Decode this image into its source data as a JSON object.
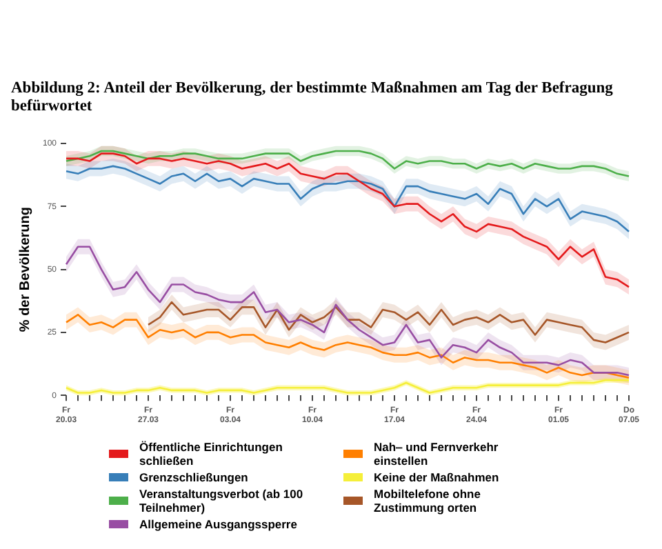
{
  "chart_data": {
    "type": "line",
    "title": "Abbildung 2: Anteil der Bevölkerung, der bestimmte Maßnahmen am Tag der Befragung befürwortet",
    "ylabel": "% der Bevölkerung",
    "categories": [
      "Fr 20.03",
      null,
      null,
      null,
      null,
      null,
      null,
      "Fr 27.03",
      null,
      null,
      null,
      null,
      null,
      null,
      "Fr 03.04",
      null,
      null,
      null,
      null,
      null,
      null,
      "Fr 10.04",
      null,
      null,
      null,
      null,
      null,
      null,
      "Fr 17.04",
      null,
      null,
      null,
      null,
      null,
      null,
      "Fr 24.04",
      null,
      null,
      null,
      null,
      null,
      null,
      "Fr 01.05",
      null,
      null,
      null,
      null,
      null,
      "Do 07.05"
    ],
    "ylim": [
      0,
      100
    ],
    "yticks": [
      0,
      25,
      50,
      75,
      100
    ],
    "grid": false,
    "legend": "bottom",
    "marker": "none",
    "line_style": "solid",
    "series": [
      {
        "name": "Öffentliche Einrichtungen schließen",
        "color": "#e41a1c",
        "values": [
          94,
          94,
          93,
          96,
          96,
          95,
          92,
          94,
          94,
          93,
          94,
          93,
          92,
          93,
          92,
          90,
          91,
          92,
          90,
          92,
          88,
          87,
          86,
          88,
          88,
          85,
          82,
          80,
          75,
          76,
          76,
          72,
          69,
          72,
          67,
          65,
          68,
          67,
          66,
          63,
          61,
          59,
          54,
          59,
          55,
          58,
          47,
          46,
          43
        ],
        "lower": [
          91,
          91,
          90,
          93,
          93,
          92,
          89,
          91,
          91,
          90,
          91,
          90,
          89,
          90,
          89,
          87,
          88,
          89,
          87,
          89,
          85,
          84,
          83,
          85,
          85,
          82,
          79,
          77,
          72,
          73,
          73,
          69,
          66,
          69,
          64,
          62,
          65,
          64,
          63,
          60,
          58,
          56,
          51,
          56,
          52,
          55,
          44,
          43,
          40
        ],
        "upper": [
          97,
          97,
          96,
          99,
          99,
          98,
          95,
          97,
          97,
          96,
          97,
          96,
          95,
          96,
          95,
          93,
          94,
          95,
          93,
          95,
          91,
          90,
          89,
          91,
          91,
          88,
          85,
          83,
          78,
          79,
          79,
          75,
          72,
          75,
          70,
          68,
          71,
          70,
          69,
          66,
          64,
          62,
          57,
          62,
          58,
          61,
          50,
          49,
          46
        ]
      },
      {
        "name": "Grenzschließungen",
        "color": "#377eb8",
        "values": [
          89,
          88,
          90,
          90,
          91,
          90,
          88,
          86,
          84,
          87,
          88,
          85,
          88,
          85,
          86,
          83,
          86,
          85,
          84,
          84,
          78,
          82,
          84,
          84,
          85,
          85,
          84,
          82,
          75,
          83,
          83,
          81,
          80,
          79,
          78,
          80,
          76,
          82,
          80,
          72,
          78,
          75,
          78,
          70,
          73,
          72,
          71,
          69,
          65
        ],
        "lower": [
          86,
          85,
          87,
          87,
          88,
          87,
          85,
          83,
          81,
          84,
          85,
          82,
          85,
          82,
          83,
          80,
          83,
          82,
          81,
          81,
          75,
          79,
          81,
          81,
          82,
          82,
          81,
          79,
          72,
          80,
          80,
          78,
          77,
          76,
          75,
          77,
          73,
          79,
          77,
          69,
          75,
          72,
          75,
          67,
          70,
          69,
          68,
          66,
          62
        ],
        "upper": [
          92,
          91,
          93,
          93,
          94,
          93,
          91,
          89,
          87,
          90,
          91,
          88,
          91,
          88,
          89,
          86,
          89,
          88,
          87,
          87,
          81,
          85,
          87,
          87,
          88,
          88,
          87,
          85,
          78,
          86,
          86,
          84,
          83,
          82,
          81,
          83,
          79,
          85,
          83,
          75,
          81,
          78,
          81,
          73,
          76,
          75,
          74,
          72,
          68
        ]
      },
      {
        "name": "Veranstaltungsverbot (ab 100 Teilnehmer)",
        "color": "#4daf4a",
        "values": [
          93,
          94,
          95,
          97,
          97,
          96,
          95,
          94,
          95,
          95,
          96,
          96,
          95,
          94,
          94,
          94,
          95,
          96,
          96,
          96,
          93,
          95,
          96,
          97,
          97,
          97,
          96,
          94,
          90,
          93,
          92,
          93,
          93,
          92,
          92,
          90,
          92,
          91,
          92,
          90,
          92,
          91,
          90,
          90,
          91,
          91,
          90,
          88,
          87
        ],
        "lower": [
          91,
          92,
          93,
          95,
          95,
          94,
          93,
          92,
          93,
          93,
          94,
          94,
          93,
          92,
          92,
          92,
          93,
          94,
          94,
          94,
          91,
          93,
          94,
          95,
          95,
          95,
          94,
          92,
          88,
          91,
          90,
          91,
          91,
          90,
          90,
          88,
          90,
          89,
          90,
          88,
          90,
          89,
          88,
          88,
          89,
          89,
          88,
          86,
          85
        ],
        "upper": [
          95,
          96,
          97,
          99,
          99,
          98,
          97,
          96,
          97,
          97,
          98,
          98,
          97,
          96,
          96,
          96,
          97,
          98,
          98,
          98,
          95,
          97,
          98,
          99,
          99,
          99,
          98,
          96,
          92,
          95,
          94,
          95,
          95,
          94,
          94,
          92,
          94,
          93,
          94,
          92,
          94,
          93,
          92,
          92,
          93,
          93,
          92,
          90,
          89
        ]
      },
      {
        "name": "Allgemeine Ausgangssperre",
        "color": "#984ea3",
        "values": [
          52,
          59,
          59,
          50,
          42,
          43,
          49,
          42,
          37,
          44,
          44,
          41,
          40,
          38,
          37,
          37,
          41,
          33,
          34,
          29,
          30,
          28,
          25,
          36,
          30,
          26,
          23,
          20,
          21,
          28,
          21,
          22,
          15,
          20,
          19,
          17,
          22,
          19,
          17,
          13,
          13,
          13,
          12,
          14,
          13,
          9,
          9,
          9,
          8
        ],
        "lower": [
          49,
          56,
          56,
          47,
          39,
          40,
          46,
          39,
          34,
          41,
          41,
          38,
          37,
          35,
          34,
          34,
          38,
          30,
          31,
          26,
          27,
          25,
          22,
          33,
          27,
          23,
          20,
          17,
          18,
          25,
          18,
          19,
          12,
          17,
          16,
          14,
          19,
          16,
          14,
          10,
          10,
          10,
          9,
          11,
          10,
          6,
          6,
          6,
          5
        ],
        "upper": [
          55,
          62,
          62,
          53,
          45,
          46,
          52,
          45,
          40,
          47,
          47,
          44,
          43,
          41,
          40,
          40,
          44,
          36,
          37,
          32,
          33,
          31,
          28,
          39,
          33,
          29,
          26,
          23,
          24,
          31,
          24,
          25,
          18,
          23,
          22,
          20,
          25,
          22,
          20,
          16,
          16,
          16,
          15,
          17,
          16,
          12,
          12,
          12,
          11
        ]
      },
      {
        "name": "Nah‒ und Fernverkehr einstellen",
        "color": "#ff7f00",
        "values": [
          29,
          32,
          28,
          29,
          27,
          30,
          30,
          23,
          26,
          25,
          26,
          23,
          25,
          25,
          23,
          24,
          24,
          21,
          20,
          19,
          21,
          19,
          18,
          20,
          21,
          20,
          19,
          17,
          16,
          16,
          17,
          15,
          16,
          13,
          15,
          14,
          14,
          13,
          13,
          12,
          11,
          9,
          11,
          9,
          8,
          9,
          9,
          8,
          7
        ],
        "lower": [
          26,
          29,
          25,
          26,
          24,
          27,
          27,
          20,
          23,
          22,
          23,
          20,
          22,
          22,
          20,
          21,
          21,
          18,
          17,
          16,
          18,
          16,
          15,
          17,
          18,
          17,
          16,
          14,
          13,
          13,
          14,
          12,
          13,
          10,
          12,
          11,
          11,
          10,
          10,
          9,
          8,
          6,
          8,
          6,
          5,
          6,
          6,
          5,
          4
        ],
        "upper": [
          32,
          35,
          31,
          32,
          30,
          33,
          33,
          26,
          29,
          28,
          29,
          26,
          28,
          28,
          26,
          27,
          27,
          24,
          23,
          22,
          24,
          22,
          21,
          23,
          24,
          23,
          22,
          20,
          19,
          19,
          20,
          18,
          19,
          16,
          18,
          17,
          17,
          16,
          16,
          15,
          14,
          12,
          14,
          12,
          11,
          12,
          12,
          11,
          10
        ]
      },
      {
        "name": "Keine der Maßnahmen",
        "color": "#f5ef3a",
        "values": [
          3,
          1,
          1,
          2,
          1,
          1,
          2,
          2,
          3,
          2,
          2,
          2,
          1,
          2,
          2,
          2,
          1,
          2,
          3,
          3,
          3,
          3,
          3,
          2,
          1,
          1,
          1,
          2,
          3,
          5,
          3,
          1,
          2,
          3,
          3,
          3,
          4,
          4,
          4,
          4,
          4,
          4,
          4,
          5,
          5,
          5,
          6,
          6,
          6
        ],
        "lower": [
          2,
          0,
          0,
          1,
          0,
          0,
          1,
          1,
          2,
          1,
          1,
          1,
          0,
          1,
          1,
          1,
          0,
          1,
          2,
          2,
          2,
          2,
          2,
          1,
          0,
          0,
          0,
          1,
          2,
          4,
          2,
          0,
          1,
          2,
          2,
          2,
          3,
          3,
          3,
          3,
          3,
          3,
          3,
          4,
          4,
          4,
          5,
          5,
          5
        ],
        "upper": [
          4,
          2,
          2,
          3,
          2,
          2,
          3,
          3,
          4,
          3,
          3,
          3,
          2,
          3,
          3,
          3,
          2,
          3,
          4,
          4,
          4,
          4,
          4,
          3,
          2,
          2,
          2,
          3,
          4,
          6,
          4,
          2,
          3,
          4,
          4,
          4,
          5,
          5,
          5,
          5,
          5,
          5,
          5,
          6,
          6,
          6,
          7,
          7,
          7
        ]
      },
      {
        "name": "Mobiltelefone ohne Zustimmung orten",
        "color": "#a65628",
        "values": [
          null,
          null,
          null,
          null,
          null,
          null,
          null,
          28,
          31,
          37,
          32,
          33,
          34,
          34,
          30,
          35,
          35,
          27,
          34,
          26,
          32,
          29,
          31,
          35,
          30,
          30,
          27,
          34,
          33,
          30,
          33,
          28,
          34,
          28,
          30,
          31,
          29,
          32,
          29,
          30,
          24,
          30,
          29,
          28,
          27,
          22,
          21,
          23,
          25
        ],
        "lower": [
          null,
          null,
          null,
          null,
          null,
          null,
          null,
          25,
          28,
          34,
          29,
          30,
          31,
          31,
          27,
          32,
          32,
          24,
          31,
          23,
          29,
          26,
          28,
          32,
          27,
          27,
          24,
          31,
          30,
          27,
          30,
          25,
          31,
          25,
          27,
          28,
          26,
          29,
          26,
          27,
          21,
          27,
          26,
          25,
          24,
          19,
          18,
          20,
          22
        ],
        "upper": [
          null,
          null,
          null,
          null,
          null,
          null,
          null,
          31,
          34,
          40,
          35,
          36,
          37,
          37,
          33,
          38,
          38,
          30,
          37,
          29,
          35,
          32,
          34,
          38,
          33,
          33,
          30,
          37,
          36,
          33,
          36,
          31,
          37,
          31,
          33,
          34,
          32,
          35,
          32,
          33,
          27,
          33,
          32,
          31,
          30,
          25,
          24,
          26,
          28
        ]
      }
    ]
  }
}
